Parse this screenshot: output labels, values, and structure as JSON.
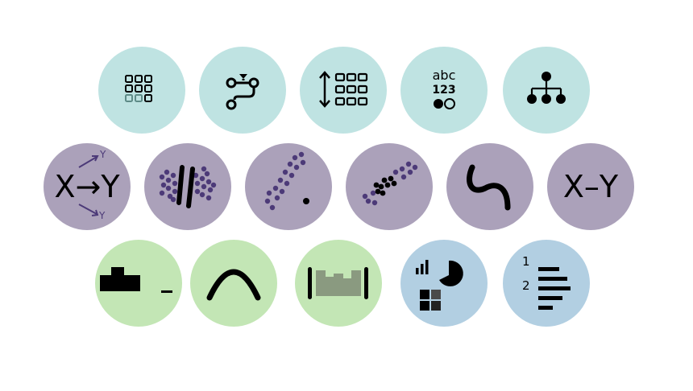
{
  "colors": {
    "teal": "#bfe3e2",
    "purple": "#aba1ba",
    "green": "#c3e6b5",
    "blue": "#b2cfe2",
    "ink": "#000000",
    "accent": "#4c3a78"
  },
  "icons": {
    "row1": [
      {
        "name": "grid-icon",
        "color": "teal"
      },
      {
        "name": "workflow-icon",
        "color": "teal"
      },
      {
        "name": "sort-rows-icon",
        "color": "teal"
      },
      {
        "name": "data-types-icon",
        "color": "teal",
        "text_top": "abc",
        "text_mid": "123"
      },
      {
        "name": "hierarchy-icon",
        "color": "teal"
      }
    ],
    "row2": [
      {
        "name": "causal-icon",
        "color": "purple",
        "text_main": "X→Y",
        "text_y_top": "Y",
        "text_y_bottom": "Y"
      },
      {
        "name": "cluster-split-icon",
        "color": "purple"
      },
      {
        "name": "outlier-icon",
        "color": "purple"
      },
      {
        "name": "correlation-icon",
        "color": "purple"
      },
      {
        "name": "curve-icon",
        "color": "purple"
      },
      {
        "name": "relationship-icon",
        "color": "purple",
        "text_main": "X–Y"
      }
    ],
    "row3": [
      {
        "name": "histogram-icon",
        "color": "green"
      },
      {
        "name": "distribution-curve-icon",
        "color": "green"
      },
      {
        "name": "range-icon",
        "color": "green"
      },
      {
        "name": "chart-types-icon",
        "color": "blue"
      },
      {
        "name": "ranking-icon",
        "color": "blue",
        "rank1": "1",
        "rank2": "2"
      }
    ]
  }
}
